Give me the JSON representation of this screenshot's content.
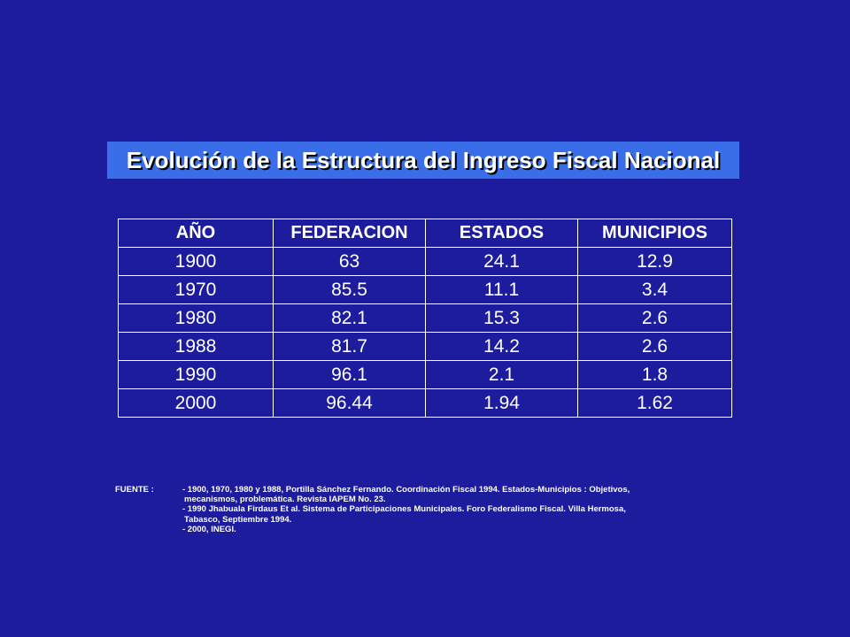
{
  "title": "Evolución de  la Estructura del Ingreso Fiscal Nacional",
  "table": {
    "headers": [
      "AÑO",
      "FEDERACION",
      "ESTADOS",
      "MUNICIPIOS"
    ],
    "rows": [
      [
        "1900",
        "63",
        "24.1",
        "12.9"
      ],
      [
        "1970",
        "85.5",
        "11.1",
        "3.4"
      ],
      [
        "1980",
        "82.1",
        "15.3",
        "2.6"
      ],
      [
        "1988",
        "81.7",
        "14.2",
        "2.6"
      ],
      [
        "1990",
        "96.1",
        "2.1",
        "1.8"
      ],
      [
        "2000",
        "96.44",
        "1.94",
        "1.62"
      ]
    ]
  },
  "source": {
    "label": "FUENTE :",
    "lines": [
      " - 1900, 1970, 1980 y 1988, Portilla Sánchez Fernando. Coordinación Fiscal 1994. Estados-Municipios : Objetivos,",
      "mecanismos, problemática. Revista IAPEM No. 23.",
      " - 1990 Jhabuala Firdaus Et al.  Sistema de Participaciones Municipales. Foro Federalismo Fiscal. Villa Hermosa,",
      "Tabasco, Septiembre 1994.",
      "- 2000, INEGI."
    ]
  },
  "colors": {
    "background": "#1c1c9c",
    "title_bar": "#3a6ee8",
    "text": "#ffffff"
  }
}
